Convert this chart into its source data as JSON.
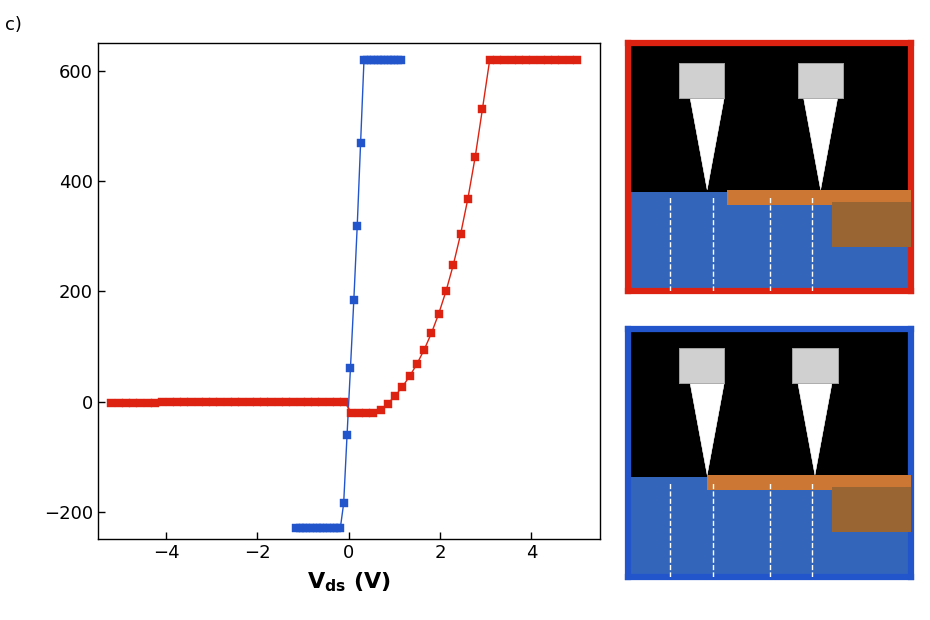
{
  "title": "c)",
  "xlim": [
    -5.5,
    5.5
  ],
  "ylim": [
    -250,
    650
  ],
  "yticks": [
    -200,
    0,
    200,
    400,
    600
  ],
  "xticks": [
    -4,
    -2,
    0,
    2,
    4
  ],
  "blue_color": "#2255cc",
  "red_color": "#dd2211",
  "bg_color": "#ffffff",
  "marker_size": 6,
  "linewidth": 1.0,
  "red_border_color": "#dd2211",
  "blue_border_color": "#2255cc"
}
